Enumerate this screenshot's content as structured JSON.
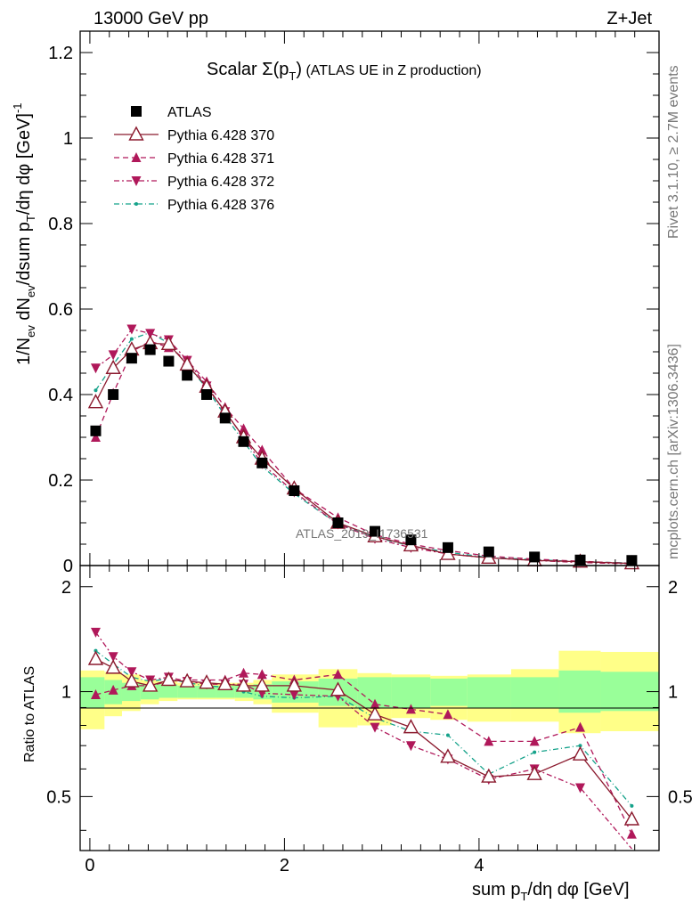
{
  "header": {
    "left": "13000 GeV pp",
    "right": "Z+Jet"
  },
  "side_labels": {
    "rivet": "Rivet 3.1.10, ≥ 2.7M events",
    "mcplots": "mcplots.cern.ch [arXiv:1306.3436]"
  },
  "watermark": "ATLAS_2019_I1736531",
  "title": {
    "main": "Scalar Σ(p",
    "sub": "T",
    "close": ")",
    "rest": " (ATLAS UE in Z production)"
  },
  "labels": {
    "ylabel_top": "1/N_ev dN_ev/dsum p_T/dη dφ [GeV]^-1",
    "ylabel_bottom": "Ratio to ATLAS",
    "xlabel": "sum p_T/dη dφ [GeV]"
  },
  "colors": {
    "data": "#000000",
    "p370": "#8b1a2e",
    "p371": "#b0185a",
    "p372": "#b0185a",
    "p376": "#15a28a",
    "band_inner": "#99ff99",
    "band_outer": "#ffff88"
  },
  "chart_data": [
    {
      "type": "scatter",
      "xlim": [
        -0.1,
        5.85
      ],
      "ylim": [
        0,
        1.25
      ],
      "yticks": [
        0,
        0.2,
        0.4,
        0.6,
        0.8,
        1,
        1.2
      ],
      "ytick_labels": [
        "0",
        "0.2",
        "0.4",
        "0.6",
        "0.8",
        "1",
        "1.2"
      ],
      "x": [
        0.06,
        0.24,
        0.43,
        0.62,
        0.81,
        1.0,
        1.2,
        1.39,
        1.58,
        1.77,
        2.1,
        2.55,
        2.93,
        3.3,
        3.68,
        4.1,
        4.57,
        5.04,
        5.57
      ],
      "series": [
        {
          "name": "ATLAS",
          "style": "data",
          "values": [
            0.315,
            0.4,
            0.485,
            0.505,
            0.478,
            0.445,
            0.4,
            0.345,
            0.29,
            0.24,
            0.175,
            0.1,
            0.08,
            0.06,
            0.042,
            0.032,
            0.02,
            0.013,
            0.012
          ]
        },
        {
          "name": "Pythia 6.428 370",
          "style": "p370",
          "values": [
            0.382,
            0.462,
            0.505,
            0.52,
            0.518,
            0.47,
            0.418,
            0.36,
            0.3,
            0.25,
            0.18,
            0.1,
            0.068,
            0.047,
            0.027,
            0.018,
            0.012,
            0.009,
            0.005
          ]
        },
        {
          "name": "Pythia 6.428 371",
          "style": "p371",
          "values": [
            0.3,
            0.403,
            0.5,
            0.525,
            0.51,
            0.48,
            0.43,
            0.37,
            0.32,
            0.27,
            0.18,
            0.112,
            0.072,
            0.05,
            0.035,
            0.022,
            0.015,
            0.01,
            0.005
          ]
        },
        {
          "name": "Pythia 6.428 372",
          "style": "p372",
          "values": [
            0.462,
            0.493,
            0.553,
            0.543,
            0.528,
            0.48,
            0.42,
            0.36,
            0.3,
            0.238,
            0.172,
            0.097,
            0.063,
            0.042,
            0.027,
            0.018,
            0.012,
            0.007,
            0.004
          ]
        },
        {
          "name": "Pythia 6.428 376",
          "style": "p376",
          "values": [
            0.41,
            0.47,
            0.53,
            0.545,
            0.52,
            0.47,
            0.415,
            0.35,
            0.29,
            0.232,
            0.168,
            0.097,
            0.066,
            0.046,
            0.031,
            0.019,
            0.014,
            0.009,
            0.006
          ]
        }
      ]
    },
    {
      "type": "scatter",
      "xlim": [
        -0.1,
        5.85
      ],
      "ylim": [
        0.35,
        2.3
      ],
      "xticks": [
        0,
        2,
        4
      ],
      "xtick_labels": [
        "0",
        "2",
        "4"
      ],
      "yticks": [
        0.5,
        1,
        2
      ],
      "ytick_labels": [
        "0.5",
        "1",
        "2"
      ],
      "band_edges": [
        -0.1,
        0.15,
        0.33,
        0.52,
        0.71,
        0.9,
        1.1,
        1.3,
        1.49,
        1.68,
        1.87,
        2.35,
        2.75,
        3.1,
        3.5,
        3.88,
        4.33,
        4.82,
        5.25,
        5.85
      ],
      "band_inner": [
        [
          0.9,
          1.1
        ],
        [
          0.92,
          1.08
        ],
        [
          0.94,
          1.06
        ],
        [
          0.95,
          1.05
        ],
        [
          0.96,
          1.05
        ],
        [
          0.96,
          1.04
        ],
        [
          0.96,
          1.04
        ],
        [
          0.96,
          1.04
        ],
        [
          0.96,
          1.04
        ],
        [
          0.95,
          1.05
        ],
        [
          0.93,
          1.07
        ],
        [
          0.91,
          1.09
        ],
        [
          0.9,
          1.1
        ],
        [
          0.9,
          1.1
        ],
        [
          0.91,
          1.09
        ],
        [
          0.9,
          1.1
        ],
        [
          0.9,
          1.1
        ],
        [
          0.87,
          1.15
        ],
        [
          0.88,
          1.14
        ]
      ],
      "band_outer": [
        [
          0.78,
          1.15
        ],
        [
          0.85,
          1.14
        ],
        [
          0.88,
          1.12
        ],
        [
          0.92,
          1.08
        ],
        [
          0.94,
          1.07
        ],
        [
          0.95,
          1.06
        ],
        [
          0.95,
          1.06
        ],
        [
          0.95,
          1.06
        ],
        [
          0.94,
          1.06
        ],
        [
          0.92,
          1.08
        ],
        [
          0.87,
          1.12
        ],
        [
          0.79,
          1.16
        ],
        [
          0.8,
          1.13
        ],
        [
          0.84,
          1.12
        ],
        [
          0.83,
          1.11
        ],
        [
          0.82,
          1.12
        ],
        [
          0.82,
          1.16
        ],
        [
          0.76,
          1.31
        ],
        [
          0.77,
          1.3
        ]
      ],
      "series": [
        {
          "name": "Pythia 6.428 370",
          "style": "p370",
          "values": [
            1.24,
            1.17,
            1.07,
            1.04,
            1.08,
            1.07,
            1.06,
            1.05,
            1.04,
            1.04,
            1.04,
            1.01,
            0.86,
            0.79,
            0.65,
            0.57,
            0.58,
            0.66,
            0.43
          ]
        },
        {
          "name": "Pythia 6.428 371",
          "style": "p371",
          "values": [
            0.98,
            1.01,
            1.04,
            1.04,
            1.07,
            1.08,
            1.08,
            1.08,
            1.13,
            1.12,
            1.08,
            1.12,
            0.92,
            0.89,
            0.86,
            0.72,
            0.72,
            0.79,
            0.39
          ]
        },
        {
          "name": "Pythia 6.428 372",
          "style": "p372",
          "values": [
            1.48,
            1.26,
            1.14,
            1.08,
            1.1,
            1.07,
            1.05,
            1.05,
            1.05,
            0.99,
            0.98,
            0.97,
            0.79,
            0.7,
            0.64,
            0.56,
            0.6,
            0.53,
            0.35
          ]
        },
        {
          "name": "Pythia 6.428 376",
          "style": "p376",
          "values": [
            1.31,
            1.2,
            1.1,
            1.07,
            1.09,
            1.06,
            1.04,
            1.03,
            1.0,
            0.97,
            0.96,
            0.97,
            0.84,
            0.77,
            0.75,
            0.58,
            0.67,
            0.7,
            0.47
          ]
        }
      ]
    }
  ]
}
